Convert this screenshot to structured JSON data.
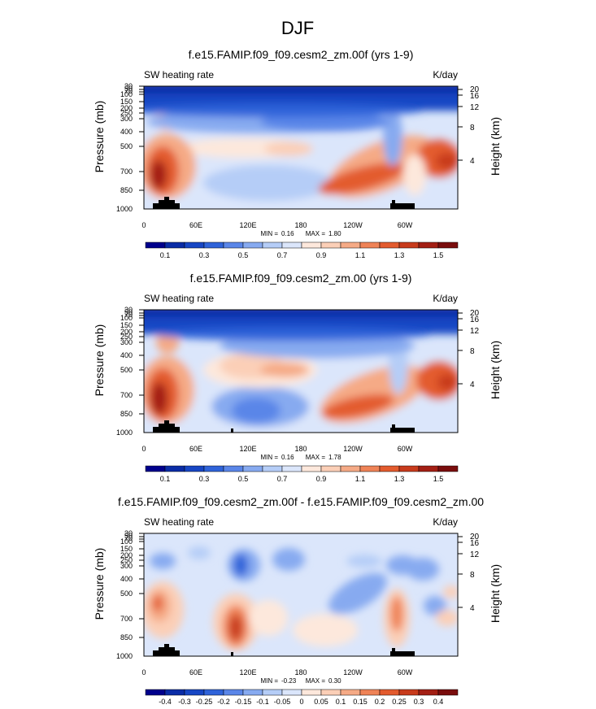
{
  "page_title": "DJF",
  "chart_data": [
    {
      "type": "heatmap",
      "title": "f.e15.FAMIP.f09_f09.cesm2_zm.00f (yrs 1-9)",
      "left_label": "SW heating rate",
      "units": "K/day",
      "ylabel": "Pressure (mb)",
      "ylabel_right": "Height (km)",
      "xticks": [
        "0",
        "60E",
        "120E",
        "180",
        "120W",
        "60W"
      ],
      "yticks": [
        "30",
        "50",
        "70",
        "100",
        "150",
        "200",
        "250",
        "300",
        "400",
        "500",
        "700",
        "850",
        "1000"
      ],
      "yticks_right": [
        "20",
        "16",
        "12",
        "8",
        "4"
      ],
      "min_label": "MIN =",
      "min_value": "0.16",
      "max_label": "MAX =",
      "max_value": "1.80",
      "colorbar_labels": [
        "0.1",
        "0.3",
        "0.5",
        "0.7",
        "0.9",
        "1.1",
        "1.3",
        "1.5"
      ],
      "colors": [
        "#00008c",
        "#0a2ca6",
        "#1746c4",
        "#2f63d9",
        "#5a86e8",
        "#87aaf0",
        "#b5cdf7",
        "#dbe6fb",
        "#fde8dc",
        "#fbcfb7",
        "#f5aa86",
        "#ef8357",
        "#e35b2e",
        "#c83b1c",
        "#a31f14",
        "#7a0d0d"
      ]
    },
    {
      "type": "heatmap",
      "title": "f.e15.FAMIP.f09_f09.cesm2_zm.00 (yrs 1-9)",
      "left_label": "SW heating rate",
      "units": "K/day",
      "ylabel": "Pressure (mb)",
      "ylabel_right": "Height (km)",
      "xticks": [
        "0",
        "60E",
        "120E",
        "180",
        "120W",
        "60W"
      ],
      "yticks": [
        "30",
        "50",
        "70",
        "100",
        "150",
        "200",
        "250",
        "300",
        "400",
        "500",
        "700",
        "850",
        "1000"
      ],
      "yticks_right": [
        "20",
        "16",
        "12",
        "8",
        "4"
      ],
      "min_label": "MIN =",
      "min_value": "0.16",
      "max_label": "MAX =",
      "max_value": "1.78",
      "colorbar_labels": [
        "0.1",
        "0.3",
        "0.5",
        "0.7",
        "0.9",
        "1.1",
        "1.3",
        "1.5"
      ],
      "colors": [
        "#00008c",
        "#0a2ca6",
        "#1746c4",
        "#2f63d9",
        "#5a86e8",
        "#87aaf0",
        "#b5cdf7",
        "#dbe6fb",
        "#fde8dc",
        "#fbcfb7",
        "#f5aa86",
        "#ef8357",
        "#e35b2e",
        "#c83b1c",
        "#a31f14",
        "#7a0d0d"
      ]
    },
    {
      "type": "heatmap",
      "title": "f.e15.FAMIP.f09_f09.cesm2_zm.00f - f.e15.FAMIP.f09_f09.cesm2_zm.00",
      "left_label": "SW heating rate",
      "units": "K/day",
      "ylabel": "Pressure (mb)",
      "ylabel_right": "Height (km)",
      "xticks": [
        "0",
        "60E",
        "120E",
        "180",
        "120W",
        "60W"
      ],
      "yticks": [
        "30",
        "50",
        "70",
        "100",
        "150",
        "200",
        "250",
        "300",
        "400",
        "500",
        "700",
        "850",
        "1000"
      ],
      "yticks_right": [
        "20",
        "16",
        "12",
        "8",
        "4"
      ],
      "min_label": "MIN =",
      "min_value": "-0.23",
      "max_label": "MAX =",
      "max_value": "0.30",
      "colorbar_labels": [
        "-0.4",
        "-0.3",
        "-0.25",
        "-0.2",
        "-0.15",
        "-0.1",
        "-0.05",
        "0",
        "0.05",
        "0.1",
        "0.15",
        "0.2",
        "0.25",
        "0.3",
        "0.4"
      ],
      "colors": [
        "#00008c",
        "#0a2ca6",
        "#1746c4",
        "#2f63d9",
        "#5a86e8",
        "#87aaf0",
        "#b5cdf7",
        "#dbe6fb",
        "#fde8dc",
        "#fbcfb7",
        "#f5aa86",
        "#ef8357",
        "#e35b2e",
        "#c83b1c",
        "#a31f14",
        "#7a0d0d"
      ]
    }
  ]
}
